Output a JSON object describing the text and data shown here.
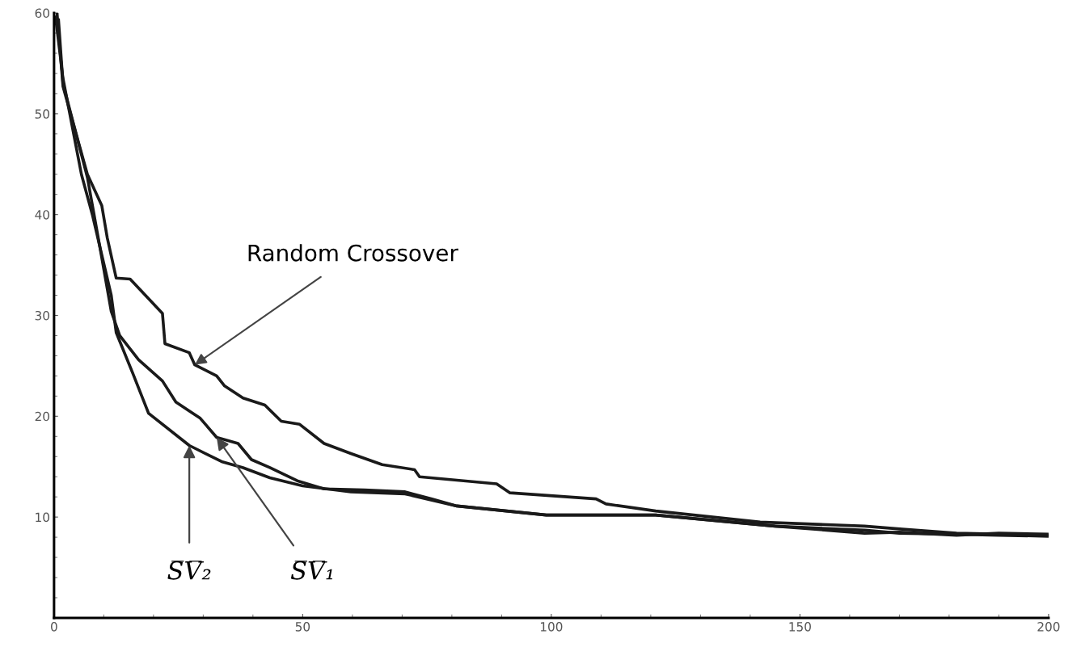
{
  "chart_data": {
    "type": "line",
    "xlim": [
      0,
      200
    ],
    "ylim": [
      0,
      60
    ],
    "xticks": [
      0,
      50,
      100,
      150,
      200
    ],
    "yticks": [
      10,
      20,
      30,
      40,
      50,
      60
    ],
    "grid": false,
    "legend": false,
    "marker": "none",
    "line_style": "solid",
    "series": [
      {
        "color": "#1a1a1a",
        "x": [
          0.6,
          1.8,
          6.7,
          9.6,
          10.7,
          12.5,
          15.3,
          21.8,
          22.3,
          27.2,
          28.3,
          32.7,
          34.3,
          38,
          42.4,
          45.7,
          49.4,
          54.3,
          59.7,
          66,
          72.5,
          73.5,
          89,
          91.7,
          109,
          111,
          121,
          142,
          163,
          170.6,
          181.5,
          200
        ],
        "values": [
          60,
          52.7,
          44,
          40.9,
          37.7,
          33.7,
          33.6,
          30.2,
          27.2,
          26.3,
          25.1,
          24,
          23,
          21.8,
          21.1,
          19.5,
          19.2,
          17.3,
          16.3,
          15.2,
          14.7,
          14,
          13.3,
          12.4,
          11.8,
          11.3,
          10.6,
          9.5,
          9.1,
          8.8,
          8.4,
          8.2
        ]
      },
      {
        "color": "#1a1a1a",
        "x": [
          0.9,
          1.8,
          6.7,
          9.5,
          11.5,
          13.2,
          17,
          21.8,
          24.5,
          29.4,
          32.7,
          37,
          39.7,
          43.4,
          48.9,
          54.3,
          62.4,
          70.6,
          76,
          81,
          99,
          121,
          145,
          163,
          170,
          181.5,
          190,
          200
        ],
        "values": [
          59.3,
          53,
          43.7,
          36,
          30.4,
          28,
          25.6,
          23.5,
          21.4,
          19.8,
          17.9,
          17.3,
          15.7,
          14.9,
          13.6,
          12.8,
          12.7,
          12.5,
          11.8,
          11.1,
          10.2,
          10.2,
          9.1,
          8.7,
          8.4,
          8.3,
          8.2,
          8.1
        ]
      },
      {
        "color": "#1a1a1a",
        "x": [
          0.3,
          1.8,
          5.5,
          7.7,
          11.5,
          12.5,
          15.8,
          19,
          27.2,
          33.7,
          38,
          43.4,
          50,
          59.7,
          70.6,
          81,
          99,
          121,
          145,
          163,
          170,
          181.5,
          190,
          200
        ],
        "values": [
          59.6,
          53.5,
          44,
          40,
          32,
          28.3,
          24.3,
          20.3,
          17.1,
          15.5,
          14.9,
          13.9,
          13.1,
          12.5,
          12.3,
          11.1,
          10.2,
          10.2,
          9.1,
          8.4,
          8.5,
          8.2,
          8.4,
          8.3
        ]
      }
    ],
    "annotations": [
      {
        "text": "Random Crossover",
        "x": 28.3,
        "y": 25.1
      },
      {
        "text": "S̅V̅₂",
        "x": 27.2,
        "y": 17.1
      },
      {
        "text": "S̅V̅₁",
        "x": 32.7,
        "y": 17.9
      }
    ]
  }
}
